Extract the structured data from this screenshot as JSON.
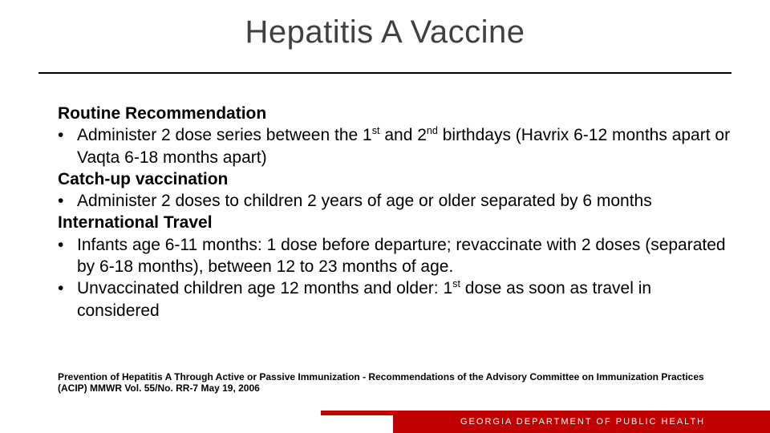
{
  "colors": {
    "title_color": "#404040",
    "text_color": "#000000",
    "accent": "#c00000",
    "footer_text": "#ffffff",
    "background": "#ffffff"
  },
  "typography": {
    "title_fontsize": 40,
    "body_fontsize": 21,
    "citation_fontsize": 12,
    "footer_fontsize": 11
  },
  "title": "Hepatitis A Vaccine",
  "sections": {
    "routine": {
      "heading": "Routine Recommendation",
      "bullet_pre": "Administer 2 dose series between the 1",
      "bullet_sup1": "st",
      "bullet_mid": " and 2",
      "bullet_sup2": "nd",
      "bullet_post": " birthdays (Havrix 6-12 months apart or Vaqta 6-18 months apart)"
    },
    "catchup": {
      "heading": "Catch-up vaccination",
      "bullet": "Administer 2 doses to children 2 years of age or older separated by 6 months"
    },
    "intl": {
      "heading": "International Travel",
      "bullet1": "Infants age 6-11 months: 1 dose before departure; revaccinate with 2 doses (separated by 6-18 months), between 12 to 23 months of age.",
      "bullet2_pre": "Unvaccinated children age 12 months and older: 1",
      "bullet2_sup": "st",
      "bullet2_post": " dose as soon as travel in considered"
    }
  },
  "citation": "Prevention of Hepatitis A Through Active or Passive Immunization - Recommendations of the Advisory Committee on Immunization Practices (ACIP) MMWR Vol. 55/No. RR-7 May 19, 2006",
  "footer": "GEORGIA DEPARTMENT OF PUBLIC HEALTH"
}
